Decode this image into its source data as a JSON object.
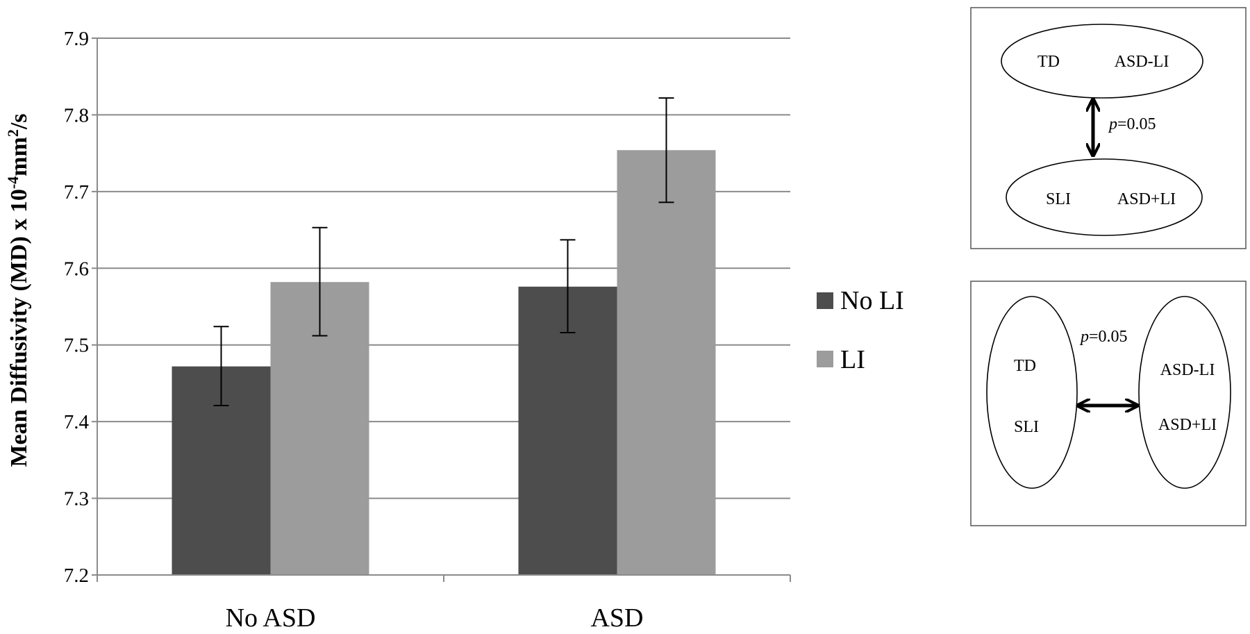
{
  "chart_data": {
    "type": "bar",
    "ylabel_main": "Mean Diffusivity (MD) x 10",
    "ylabel_exp": "-4",
    "ylabel_unit_mid": "mm",
    "ylabel_unit_exp": "2",
    "ylabel_unit_end": "/s",
    "xlabel": "",
    "ylim": [
      7.2,
      7.9
    ],
    "yticks": [
      "7.2",
      "7.3",
      "7.4",
      "7.5",
      "7.6",
      "7.7",
      "7.8",
      "7.9"
    ],
    "categories": [
      "No ASD",
      "ASD"
    ],
    "series": [
      {
        "name": "No LI",
        "color": "#4d4d4d",
        "values": [
          7.472,
          7.576
        ],
        "err_low": [
          7.421,
          7.516
        ],
        "err_high": [
          7.524,
          7.637
        ]
      },
      {
        "name": "LI",
        "color": "#9c9c9c",
        "values": [
          7.582,
          7.754
        ],
        "err_low": [
          7.512,
          7.686
        ],
        "err_high": [
          7.653,
          7.822
        ]
      }
    ],
    "grid": true,
    "legend": "right"
  },
  "diagram_top": {
    "top_ellipse": [
      "TD",
      "ASD-LI"
    ],
    "bottom_ellipse": [
      "SLI",
      "ASD+LI"
    ],
    "p_italic": "p",
    "p_value": "=0.05"
  },
  "diagram_bottom": {
    "left_ellipse": [
      "TD",
      "SLI"
    ],
    "right_ellipse": [
      "ASD-LI",
      "ASD+LI"
    ],
    "p_italic": "p",
    "p_value": "=0.05"
  }
}
